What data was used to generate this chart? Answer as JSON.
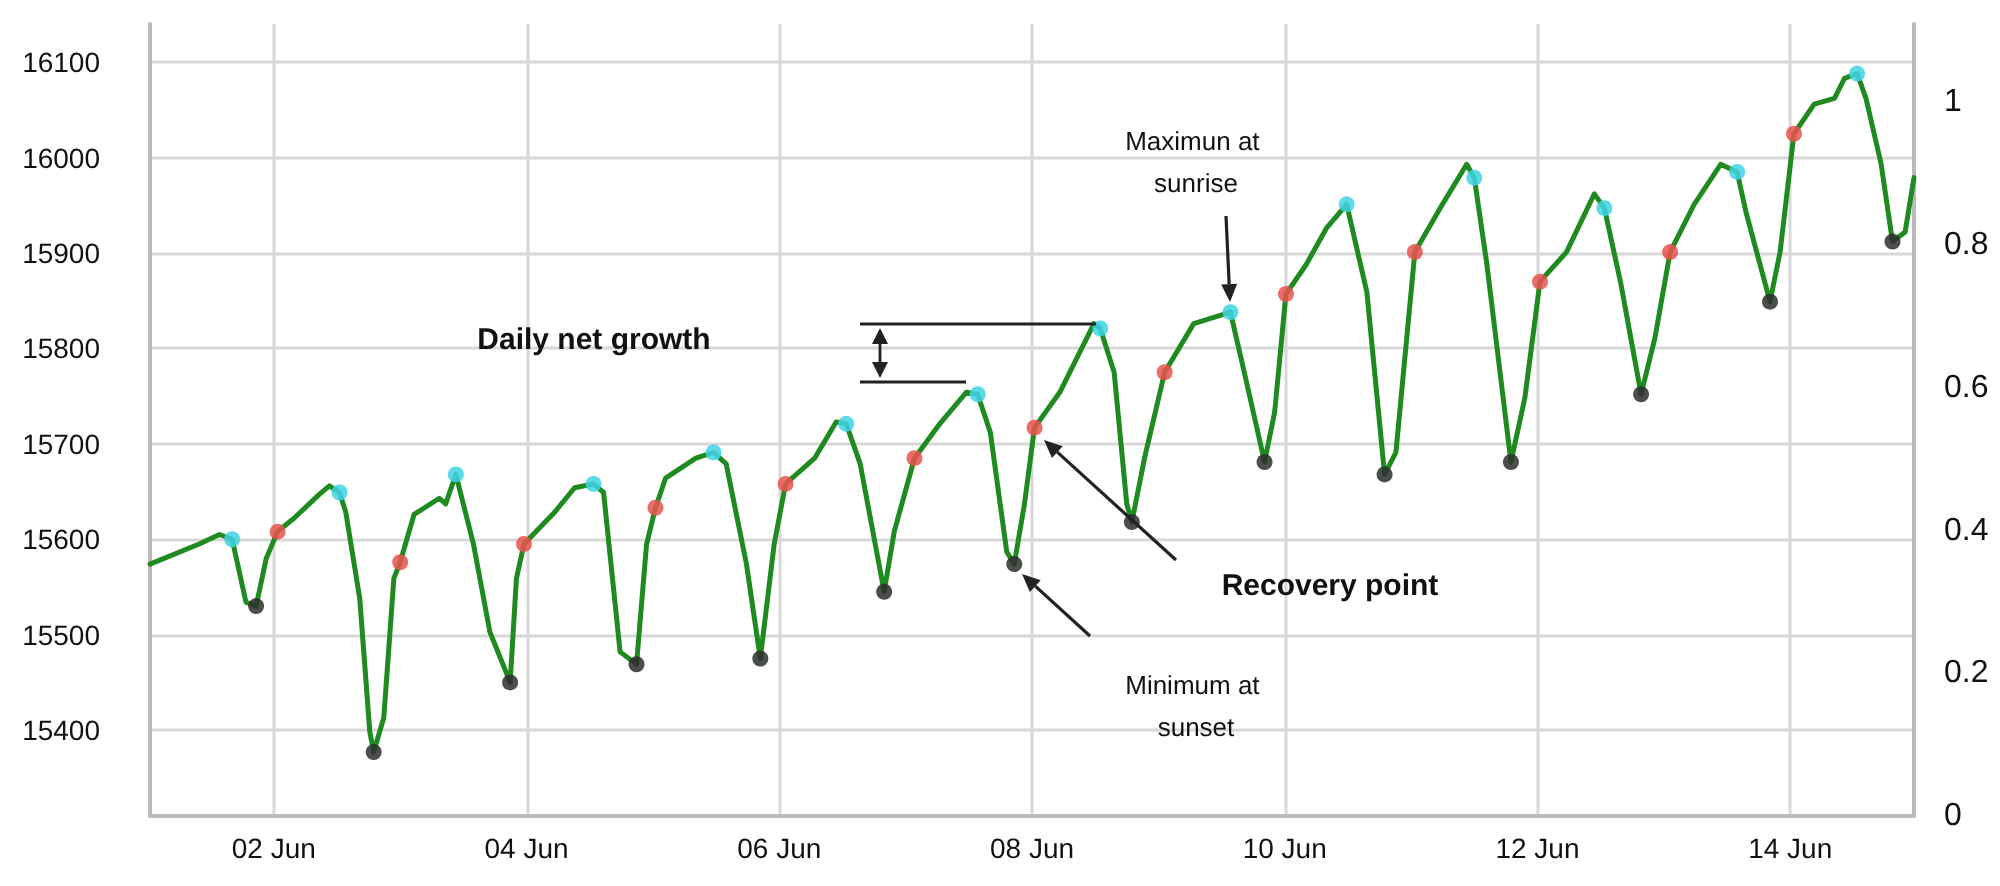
{
  "chart_data": {
    "type": "line",
    "xlim": [
      "--06-01T00:29",
      "--06-14T23:31"
    ],
    "xticks": [
      {
        "value": "--06-02",
        "label": "02 Jun"
      },
      {
        "value": "--06-04",
        "label": "04 Jun"
      },
      {
        "value": "--06-06",
        "label": "06 Jun"
      },
      {
        "value": "--06-08",
        "label": "08 Jun"
      },
      {
        "value": "--06-10",
        "label": "10 Jun"
      },
      {
        "value": "--06-12",
        "label": "12 Jun"
      },
      {
        "value": "--06-14",
        "label": "14 Jun"
      }
    ],
    "ylim": [
      15310,
      16140
    ],
    "yticks": [
      15400,
      15500,
      15600,
      15700,
      15800,
      15900,
      16000,
      16100
    ],
    "y2lim": [
      0,
      1.11
    ],
    "y2ticks": [
      0,
      0.2,
      0.4,
      0.6,
      0.8,
      1
    ],
    "grid": true,
    "series": [
      {
        "color": "#1f8a1f",
        "marker": "none",
        "line_style": "solid",
        "x": [
          "--06-01T00:29",
          "--06-01T09:50",
          "--06-01T13:41",
          "--06-01T16:05",
          "--06-01T18:43",
          "--06-01T20:38",
          "--06-01T22:34",
          "--06-02T00:43",
          "--06-02T03:50",
          "--06-02T08:38",
          "--06-02T10:34",
          "--06-02T12:29",
          "--06-02T13:41",
          "--06-02T16:19",
          "--06-02T18:14",
          "--06-02T18:58",
          "--06-02T20:53",
          "--06-02T22:48",
          "--06-03T00:00",
          "--06-03T02:38",
          "--06-03T07:26",
          "--06-03T08:38",
          "--06-03T10:34",
          "--06-03T13:55",
          "--06-03T17:02",
          "--06-03T20:53",
          "--06-03T22:05",
          "--06-03T23:31",
          "--06-04T05:17",
          "--06-04T09:07",
          "--06-04T12:43",
          "--06-04T14:38",
          "--06-04T17:46",
          "--06-04T20:53",
          "--06-04T22:48",
          "--06-05T00:29",
          "--06-05T02:24",
          "--06-05T08:10",
          "--06-05T11:31",
          "--06-05T13:55",
          "--06-05T17:46",
          "--06-05T20:24",
          "--06-05T23:02",
          "--06-06T01:12",
          "--06-06T06:43",
          "--06-06T10:48",
          "--06-06T12:43",
          "--06-06T15:22",
          "--06-06T19:55",
          "--06-06T21:50",
          "--06-07T01:41",
          "--06-07T06:29",
          "--06-07T11:31",
          "--06-07T13:41",
          "--06-07T16:05",
          "--06-07T19:12",
          "--06-07T20:38",
          "--06-07T22:34",
          "--06-08T00:29",
          "--06-08T05:17",
          "--06-08T11:46",
          "--06-08T12:58",
          "--06-08T15:36",
          "--06-08T18:00",
          "--06-08T18:58",
          "--06-08T21:22",
          "--06-09T01:12",
          "--06-09T06:43",
          "--06-09T12:29",
          "--06-09T13:41",
          "--06-09T16:19",
          "--06-09T20:10",
          "--06-09T22:05",
          "--06-10T00:14",
          "--06-10T04:05",
          "--06-10T07:55",
          "--06-10T11:46",
          "--06-10T15:36",
          "--06-10T18:58",
          "--06-10T21:07",
          "--06-11T00:43",
          "--06-11T05:31",
          "--06-11T10:34",
          "--06-11T12:00",
          "--06-11T14:24",
          "--06-11T18:58",
          "--06-11T21:36",
          "--06-12T00:29",
          "--06-12T05:31",
          "--06-12T10:48",
          "--06-12T12:43",
          "--06-12T15:50",
          "--06-12T19:41",
          "--06-12T22:19",
          "--06-13T01:12",
          "--06-13T05:46",
          "--06-13T10:48",
          "--06-13T13:55",
          "--06-13T15:36",
          "--06-13T20:10",
          "--06-13T22:05",
          "--06-14T00:43",
          "--06-14T04:34",
          "--06-14T08:24",
          "--06-14T10:19",
          "--06-14T12:43",
          "--06-14T14:24",
          "--06-14T17:17",
          "--06-14T19:26",
          "--06-14T21:50",
          "--06-14T23:31"
        ],
        "values": [
          15574,
          15595,
          15605,
          15600,
          15534,
          15530,
          15580,
          15608,
          15622,
          15647,
          15656,
          15649,
          15628,
          15538,
          15398,
          15377,
          15413,
          15559,
          15576,
          15626,
          15643,
          15637,
          15668,
          15595,
          15503,
          15450,
          15559,
          15595,
          15628,
          15654,
          15658,
          15649,
          15482,
          15469,
          15595,
          15633,
          15664,
          15685,
          15691,
          15679,
          15574,
          15475,
          15595,
          15658,
          15685,
          15723,
          15721,
          15679,
          15545,
          15608,
          15685,
          15721,
          15754,
          15752,
          15712,
          15587,
          15574,
          15637,
          15717,
          15754,
          15826,
          15821,
          15775,
          15637,
          15618,
          15685,
          15775,
          15826,
          15836,
          15838,
          15775,
          15681,
          15733,
          15857,
          15888,
          15926,
          15951,
          15859,
          15668,
          15691,
          15901,
          15947,
          15993,
          15979,
          15888,
          15681,
          15748,
          15870,
          15901,
          15962,
          15947,
          15868,
          15752,
          15811,
          15901,
          15951,
          15993,
          15985,
          15943,
          15849,
          15901,
          16025,
          16056,
          16062,
          16083,
          16088,
          16062,
          15993,
          15912,
          15922,
          15979
        ]
      },
      {
        "type": "scatter",
        "color": "#3fd3e6",
        "marker": "circle",
        "x": [
          "--06-01T16:05",
          "--06-02T12:29",
          "--06-03T10:34",
          "--06-04T12:43",
          "--06-05T11:31",
          "--06-06T12:43",
          "--06-07T13:41",
          "--06-08T12:58",
          "--06-09T13:41",
          "--06-10T11:46",
          "--06-11T12:00",
          "--06-12T12:43",
          "--06-13T13:55",
          "--06-14T12:43"
        ],
        "values": [
          15600,
          15649,
          15668,
          15658,
          15691,
          15721,
          15752,
          15821,
          15838,
          15951,
          15979,
          15947,
          15985,
          16088
        ]
      },
      {
        "type": "scatter",
        "color": "#e8524f",
        "marker": "circle",
        "x": [
          "--06-02T00:43",
          "--06-03T00:00",
          "--06-03T23:31",
          "--06-05T00:29",
          "--06-06T01:12",
          "--06-07T01:41",
          "--06-08T00:29",
          "--06-09T01:12",
          "--06-10T00:14",
          "--06-11T00:43",
          "--06-12T00:29",
          "--06-13T01:12",
          "--06-14T00:43"
        ],
        "values": [
          15608,
          15576,
          15595,
          15633,
          15658,
          15685,
          15717,
          15775,
          15857,
          15901,
          15870,
          15901,
          16025
        ]
      },
      {
        "type": "scatter",
        "color": "#2e2e2e",
        "marker": "circle",
        "x": [
          "--06-01T20:38",
          "--06-02T18:58",
          "--06-03T20:53",
          "--06-04T20:53",
          "--06-05T20:24",
          "--06-06T19:55",
          "--06-07T20:38",
          "--06-08T18:58",
          "--06-09T20:10",
          "--06-10T18:58",
          "--06-11T18:58",
          "--06-12T19:41",
          "--06-13T20:10",
          "--06-14T19:26"
        ],
        "values": [
          15530,
          15377,
          15450,
          15469,
          15475,
          15545,
          15574,
          15618,
          15681,
          15668,
          15681,
          15752,
          15849,
          15912
        ]
      }
    ],
    "annotations": [
      "Daily net growth",
      "Maximun at sunrise",
      "Recovery point",
      "Minimum at sunset"
    ]
  }
}
